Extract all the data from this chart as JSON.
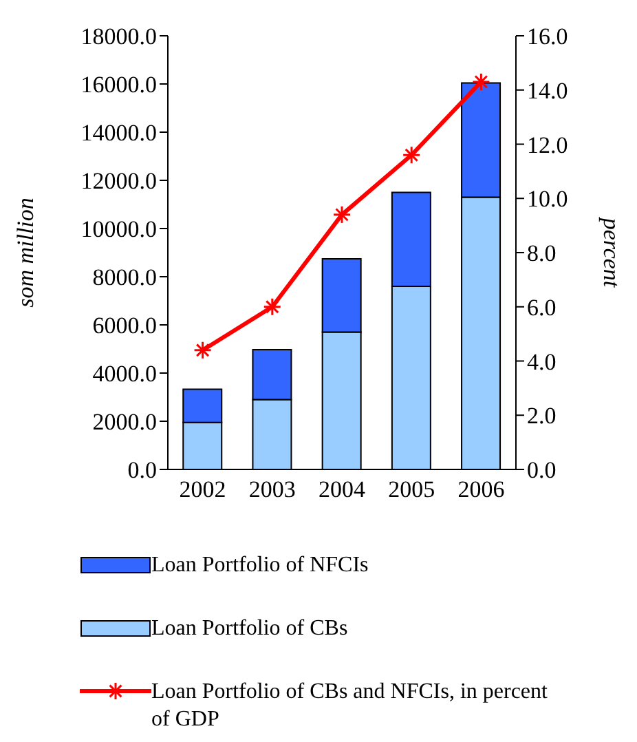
{
  "chart_data": {
    "type": "bar",
    "stacked": true,
    "categories": [
      "2002",
      "2003",
      "2004",
      "2005",
      "2006"
    ],
    "series": [
      {
        "name": "Loan Portfolio of CBs",
        "color": "#99ccff",
        "values": [
          1950,
          2900,
          5700,
          7600,
          11300
        ]
      },
      {
        "name": "Loan Portfolio of NFCIs",
        "color": "#3366ff",
        "values": [
          1380,
          2070,
          3040,
          3900,
          4740
        ]
      },
      {
        "name": "Loan Portfolio of CBs and NFCIs, in percent of GDP",
        "type": "line",
        "axis": "y2",
        "color": "#ff0000",
        "values": [
          4.4,
          6.0,
          9.4,
          11.6,
          14.3
        ]
      }
    ],
    "ylabel": "som million",
    "y2label": "percent",
    "ylim": [
      0,
      18000
    ],
    "yticks": [
      {
        "value": 0,
        "label": "0.0"
      },
      {
        "value": 2000,
        "label": "2000.0"
      },
      {
        "value": 4000,
        "label": "4000.0"
      },
      {
        "value": 6000,
        "label": "6000.0"
      },
      {
        "value": 8000,
        "label": "8000.0"
      },
      {
        "value": 10000,
        "label": "10000.0"
      },
      {
        "value": 12000,
        "label": "12000.0"
      },
      {
        "value": 14000,
        "label": "14000.0"
      },
      {
        "value": 16000,
        "label": "16000.0"
      },
      {
        "value": 18000,
        "label": "18000.0"
      }
    ],
    "y2lim": [
      0,
      16
    ],
    "y2ticks": [
      {
        "value": 0,
        "label": "0.0"
      },
      {
        "value": 2,
        "label": "2.0"
      },
      {
        "value": 4,
        "label": "4.0"
      },
      {
        "value": 6,
        "label": "6.0"
      },
      {
        "value": 8,
        "label": "8.0"
      },
      {
        "value": 10,
        "label": "10.0"
      },
      {
        "value": 12,
        "label": "12.0"
      },
      {
        "value": 14,
        "label": "14.0"
      },
      {
        "value": 16,
        "label": "16.0"
      }
    ],
    "marker": "cross",
    "legend": "bottom",
    "grid": false
  }
}
